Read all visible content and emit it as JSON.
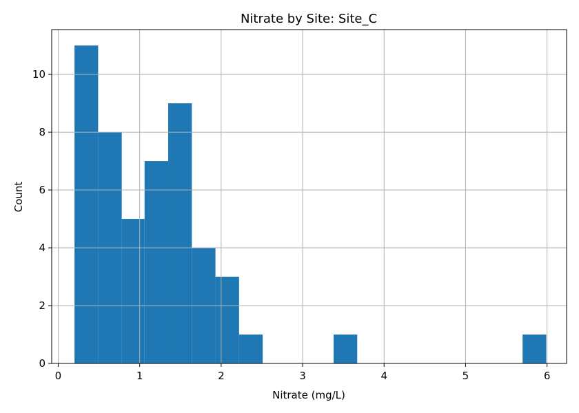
{
  "chart_data": {
    "type": "bar",
    "subtype": "histogram",
    "title": "Nitrate by Site: Site_C",
    "xlabel": "Nitrate (mg/L)",
    "ylabel": "Count",
    "xlim": [
      -0.08,
      6.24
    ],
    "ylim": [
      0,
      11.55
    ],
    "xticks": [
      0,
      1,
      2,
      3,
      4,
      5,
      6
    ],
    "yticks": [
      0,
      2,
      4,
      6,
      8,
      10
    ],
    "grid": true,
    "bar_color": "#1f77b4",
    "bins": [
      {
        "start": 0.2,
        "end": 0.49,
        "count": 11
      },
      {
        "start": 0.49,
        "end": 0.78,
        "count": 8
      },
      {
        "start": 0.78,
        "end": 1.06,
        "count": 5
      },
      {
        "start": 1.06,
        "end": 1.35,
        "count": 7
      },
      {
        "start": 1.35,
        "end": 1.64,
        "count": 9
      },
      {
        "start": 1.64,
        "end": 1.93,
        "count": 4
      },
      {
        "start": 1.93,
        "end": 2.22,
        "count": 3
      },
      {
        "start": 2.22,
        "end": 2.51,
        "count": 1
      },
      {
        "start": 2.51,
        "end": 2.8,
        "count": 0
      },
      {
        "start": 2.8,
        "end": 3.09,
        "count": 0
      },
      {
        "start": 3.09,
        "end": 3.38,
        "count": 0
      },
      {
        "start": 3.38,
        "end": 3.67,
        "count": 1
      },
      {
        "start": 3.67,
        "end": 3.96,
        "count": 0
      },
      {
        "start": 3.96,
        "end": 4.25,
        "count": 0
      },
      {
        "start": 4.25,
        "end": 4.54,
        "count": 0
      },
      {
        "start": 4.54,
        "end": 4.83,
        "count": 0
      },
      {
        "start": 4.83,
        "end": 5.12,
        "count": 0
      },
      {
        "start": 5.12,
        "end": 5.41,
        "count": 0
      },
      {
        "start": 5.41,
        "end": 5.7,
        "count": 0
      },
      {
        "start": 5.7,
        "end": 5.99,
        "count": 1
      }
    ]
  }
}
